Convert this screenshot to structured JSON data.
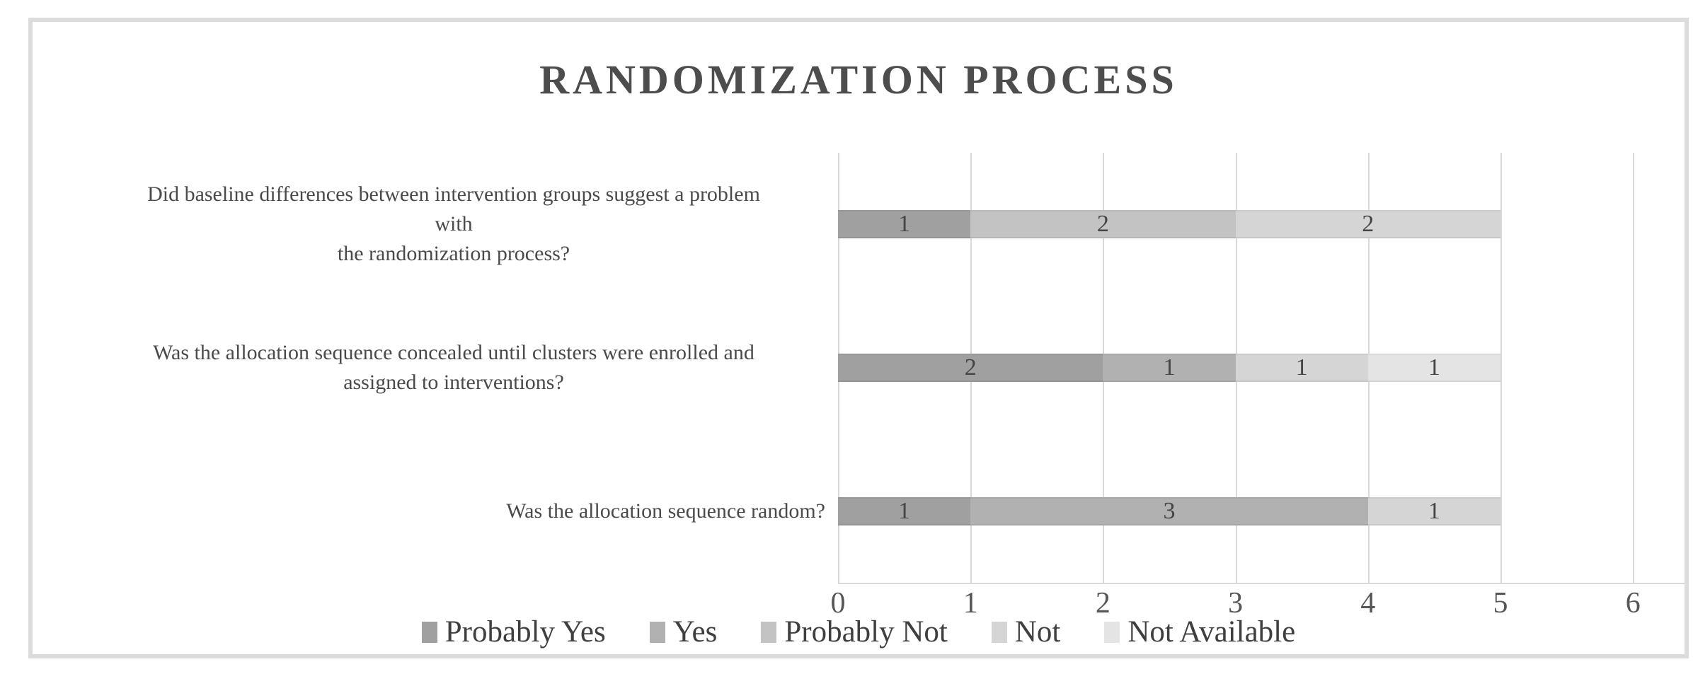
{
  "chart_data": {
    "type": "bar",
    "orientation": "horizontal",
    "stacked": true,
    "title": "RANDOMIZATION PROCESS",
    "categories": [
      {
        "text": "Did baseline differences between intervention groups suggest a problem with the randomization process?",
        "lines": [
          "Did baseline differences between intervention groups suggest a problem",
          "with",
          "the randomization process?"
        ]
      },
      {
        "text": "Was the allocation sequence concealed until clusters were enrolled and assigned to interventions?",
        "lines": [
          "Was the allocation sequence concealed until clusters were enrolled and",
          "assigned to interventions?"
        ]
      },
      {
        "text": "Was the allocation sequence random?",
        "lines": [
          "Was the allocation sequence random?"
        ]
      }
    ],
    "series": [
      {
        "name": "Probably Yes",
        "color": "#a0a0a0",
        "values": [
          1,
          2,
          1
        ]
      },
      {
        "name": "Yes",
        "color": "#b1b1b1",
        "values": [
          0,
          1,
          3
        ]
      },
      {
        "name": "Probably Not",
        "color": "#c3c3c3",
        "values": [
          2,
          0,
          0
        ]
      },
      {
        "name": "Not",
        "color": "#d5d5d5",
        "values": [
          2,
          1,
          1
        ]
      },
      {
        "name": "Not Available",
        "color": "#e4e4e4",
        "values": [
          0,
          1,
          0
        ]
      }
    ],
    "xlabel": "",
    "ylabel": "",
    "xlim": [
      0,
      6
    ],
    "x_ticks": [
      0,
      1,
      2,
      3,
      4,
      5,
      6
    ],
    "grid": "vertical",
    "gridline_color": "#d9d9d9",
    "legend_position": "bottom",
    "data_labels": true,
    "per_bar_totals": 5
  }
}
